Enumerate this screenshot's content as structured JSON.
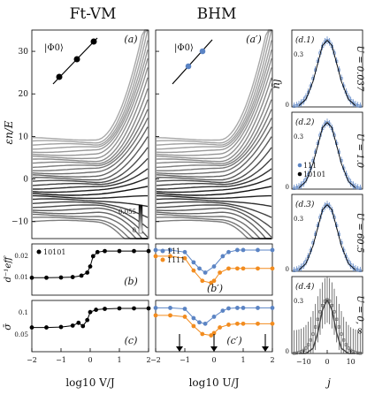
{
  "headers": {
    "left": "Ft-VM",
    "right": "BHM"
  },
  "colors": {
    "blue": "#5b84c4",
    "orange": "#f28c1f",
    "black": "#000000",
    "gray_line": "#555555"
  },
  "panel_labels": {
    "a": "(a)",
    "a_prime": "(a′)",
    "b": "(b)",
    "b_prime": "(b′)",
    "c": "(c)",
    "c_prime": "(c′)",
    "d1": "(d.1)",
    "d2": "(d.2)",
    "d3": "(d.3)",
    "d4": "(d.4)"
  },
  "axis_labels": {
    "energy_y": "εn/E",
    "d_eff_y": "d⁻¹eff",
    "sigma_y": "σ̄",
    "x_left": "log10 V/J",
    "x_mid": "log10 U/J",
    "nbar_y": "n̄j",
    "x_right": "j"
  },
  "insets": {
    "phi_left": "|Φ0⟩",
    "phi_right": "|Φ0⟩"
  },
  "colorbar": {
    "max": "0.055",
    "min": "0"
  },
  "legends": {
    "b": "10101",
    "b_prime_1": "111",
    "b_prime_2": "1111",
    "d2_1": "111",
    "d2_2": "10101"
  },
  "u_labels": [
    "U = 0.037",
    "U = 1.0",
    "U = 60.5",
    "U = 0, ∞"
  ],
  "ticks": {
    "energy_y": [
      "30",
      "20",
      "10",
      "0",
      "−10"
    ],
    "d_eff_y": [
      "0.02",
      "0.01"
    ],
    "sigma_y": [
      "0.1",
      "0.05"
    ],
    "x_bottom": [
      "−2",
      "−1",
      "0",
      "1",
      "2"
    ],
    "nbar_y_top": "0.3",
    "nbar_y_bottom": "0",
    "x_right": [
      "−10",
      "0",
      "10"
    ]
  },
  "chart_data": [
    {
      "type": "scatter",
      "panel": "(b)",
      "xlabel": "log10 V/J",
      "ylabel": "d⁻¹eff",
      "xlim": [
        -2,
        2
      ],
      "ylim": [
        0.0,
        0.025
      ],
      "series": [
        {
          "name": "10101",
          "color": "#000000",
          "x": [
            -2,
            -1.5,
            -1.0,
            -0.6,
            -0.3,
            -0.1,
            0.0,
            0.1,
            0.25,
            0.5,
            1.0,
            1.5,
            2.0
          ],
          "y": [
            0.0085,
            0.0085,
            0.0086,
            0.0088,
            0.0095,
            0.011,
            0.014,
            0.019,
            0.021,
            0.0215,
            0.0215,
            0.0215,
            0.0215
          ]
        }
      ]
    },
    {
      "type": "scatter",
      "panel": "(b′)",
      "xlabel": "log10 U/J",
      "xlim": [
        -2,
        2
      ],
      "ylim": [
        0.0,
        0.025
      ],
      "series": [
        {
          "name": "111",
          "color": "#5b84c4",
          "x": [
            -2,
            -1.5,
            -1.0,
            -0.7,
            -0.5,
            -0.3,
            0.0,
            0.3,
            0.5,
            0.8,
            1.0,
            1.5,
            2.0
          ],
          "y": [
            0.022,
            0.022,
            0.021,
            0.016,
            0.013,
            0.011,
            0.014,
            0.019,
            0.021,
            0.022,
            0.022,
            0.022,
            0.022
          ]
        },
        {
          "name": "1111",
          "color": "#f28c1f",
          "x": [
            -2,
            -1.5,
            -1.0,
            -0.7,
            -0.4,
            -0.1,
            0.0,
            0.2,
            0.5,
            0.8,
            1.0,
            1.5,
            2.0
          ],
          "y": [
            0.019,
            0.019,
            0.018,
            0.012,
            0.007,
            0.006,
            0.007,
            0.011,
            0.013,
            0.013,
            0.013,
            0.013,
            0.013
          ]
        }
      ]
    },
    {
      "type": "scatter",
      "panel": "(c)",
      "xlabel": "log10 V/J",
      "ylabel": "σ̄",
      "xlim": [
        -2,
        2
      ],
      "ylim": [
        0.0,
        0.11
      ],
      "series": [
        {
          "name": "10101",
          "color": "#000000",
          "x": [
            -2,
            -1.5,
            -1.0,
            -0.6,
            -0.4,
            -0.25,
            -0.1,
            0.0,
            0.2,
            0.5,
            1.0,
            1.5,
            2.0
          ],
          "y": [
            0.052,
            0.052,
            0.053,
            0.056,
            0.062,
            0.055,
            0.068,
            0.085,
            0.09,
            0.092,
            0.093,
            0.093,
            0.093
          ]
        }
      ]
    },
    {
      "type": "scatter",
      "panel": "(c′)",
      "xlabel": "log10 U/J",
      "xlim": [
        -2,
        2
      ],
      "ylim": [
        0.0,
        0.11
      ],
      "series": [
        {
          "name": "111",
          "color": "#5b84c4",
          "x": [
            -2,
            -1.5,
            -1.0,
            -0.7,
            -0.5,
            -0.3,
            0.0,
            0.3,
            0.5,
            0.8,
            1.0,
            1.5,
            2.0
          ],
          "y": [
            0.094,
            0.094,
            0.092,
            0.072,
            0.063,
            0.06,
            0.075,
            0.088,
            0.093,
            0.094,
            0.094,
            0.094,
            0.094
          ]
        },
        {
          "name": "1111",
          "color": "#f28c1f",
          "x": [
            -2,
            -1.5,
            -1.0,
            -0.7,
            -0.4,
            -0.1,
            0.0,
            0.2,
            0.5,
            0.8,
            1.0,
            1.5,
            2.0
          ],
          "y": [
            0.078,
            0.078,
            0.075,
            0.055,
            0.038,
            0.035,
            0.04,
            0.052,
            0.058,
            0.06,
            0.06,
            0.06,
            0.06
          ]
        }
      ]
    },
    {
      "type": "line",
      "panel": "(d.1)-(d.4)",
      "xlabel": "j",
      "ylabel": "n̄j",
      "xlim": [
        -15,
        15
      ],
      "ylim": [
        0,
        0.3
      ],
      "series": [
        {
          "name": "U = 0.037",
          "color": "#5b84c4",
          "x": [
            -12,
            -9,
            -6,
            -4,
            -2,
            0,
            2,
            4,
            6,
            9,
            12
          ],
          "y": [
            0.005,
            0.03,
            0.1,
            0.17,
            0.24,
            0.26,
            0.24,
            0.17,
            0.1,
            0.03,
            0.005
          ]
        },
        {
          "name": "U = 1.0",
          "color": "#5b84c4",
          "x": [
            -12,
            -9,
            -6,
            -4,
            -2,
            0,
            2,
            4,
            6,
            9,
            12
          ],
          "y": [
            0.005,
            0.03,
            0.1,
            0.17,
            0.24,
            0.26,
            0.24,
            0.17,
            0.1,
            0.03,
            0.005
          ]
        },
        {
          "name": "U = 60.5",
          "color": "#5b84c4",
          "x": [
            -12,
            -9,
            -6,
            -4,
            -2,
            0,
            2,
            4,
            6,
            9,
            12
          ],
          "y": [
            0.005,
            0.03,
            0.1,
            0.17,
            0.24,
            0.26,
            0.24,
            0.17,
            0.1,
            0.03,
            0.005
          ]
        },
        {
          "name": "U = 0, ∞",
          "color": "#555555",
          "x": [
            -12,
            -9,
            -6,
            -4,
            -2,
            0,
            2,
            4,
            6,
            9,
            12
          ],
          "y": [
            0.0,
            0.0,
            0.02,
            0.08,
            0.17,
            0.21,
            0.17,
            0.08,
            0.02,
            0.0,
            0.0
          ]
        }
      ]
    }
  ]
}
